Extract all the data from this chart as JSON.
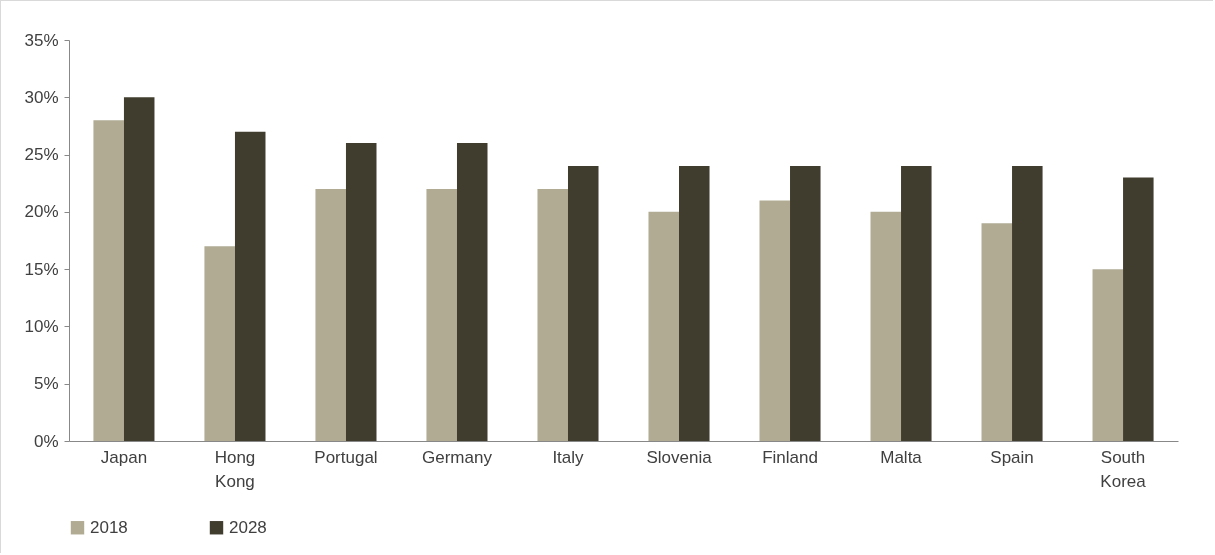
{
  "chart_data": {
    "type": "bar",
    "categories": [
      "Japan",
      "Hong Kong",
      "Portugal",
      "Germany",
      "Italy",
      "Slovenia",
      "Finland",
      "Malta",
      "Spain",
      "South Korea"
    ],
    "series": [
      {
        "name": "2018",
        "color": "#b1ab94",
        "values": [
          28,
          17,
          22,
          22,
          22,
          20,
          21,
          20,
          19,
          15
        ]
      },
      {
        "name": "2028",
        "color": "#403c2e",
        "values": [
          30,
          27,
          26,
          26,
          24,
          24,
          24,
          24,
          24,
          23
        ]
      }
    ],
    "ylim": [
      0,
      35
    ],
    "yticks": [
      {
        "value": 0,
        "label": "0%"
      },
      {
        "value": 5,
        "label": "5%"
      },
      {
        "value": 10,
        "label": "10%"
      },
      {
        "value": 15,
        "label": "15%"
      },
      {
        "value": 20,
        "label": "20%"
      },
      {
        "value": 25,
        "label": "25%"
      },
      {
        "value": 30,
        "label": "30%"
      },
      {
        "value": 35,
        "label": "35%"
      }
    ],
    "grid": false,
    "legend": "bottom"
  }
}
